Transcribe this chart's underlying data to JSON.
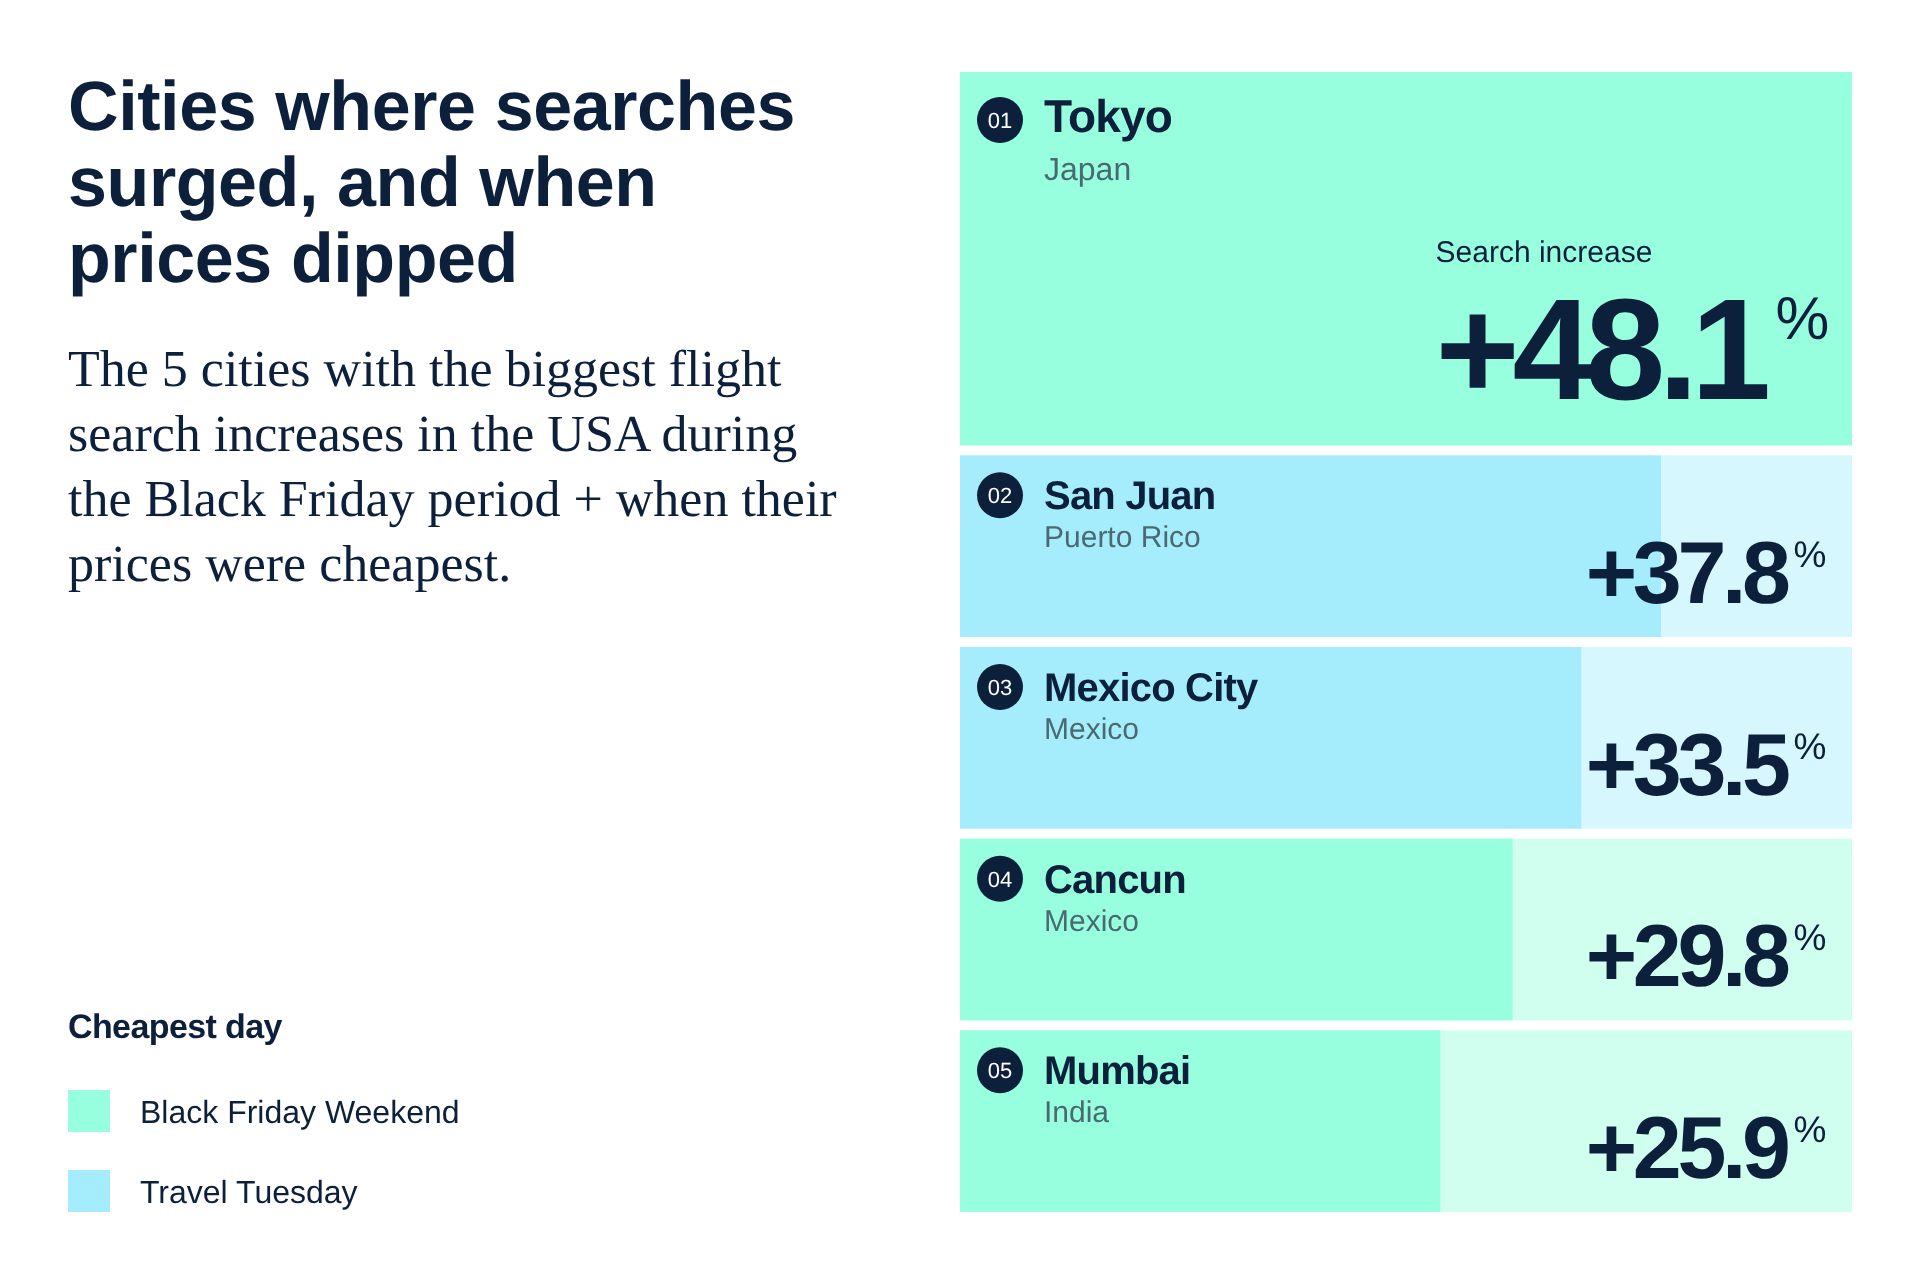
{
  "chart_data": {
    "type": "bar",
    "orientation": "horizontal",
    "stacked": true,
    "title": "Cities where searches surged, and when prices dipped",
    "subtitle": "The 5 cities with the biggest flight search increases in the USA during the Black Friday period + when their prices were cheapest.",
    "xlabel": "Search increase",
    "legend_title": "Cheapest day",
    "legend": "bottom left",
    "categories": [
      "Tokyo",
      "San Juan",
      "Mexico City",
      "Cancun",
      "Mumbai"
    ],
    "series": [
      {
        "name": "Black Friday Weekend",
        "color": "#97fede",
        "values": [
          48.1,
          null,
          null,
          29.8,
          25.9
        ],
        "value_labels": [
          "+48.1$^{%}$",
          null,
          null,
          "+29.8$^{%}$",
          "+25.9$^{%}$"
        ]
      },
      {
        "name": "Travel Tuesday",
        "color": "#a5edfc",
        "values": [
          null,
          37.8,
          33.5,
          null,
          null
        ],
        "value_labels": [
          null,
          "+37.8$^{%}$",
          "+33.5$^{%}$",
          null,
          null
        ]
      }
    ],
    "annotations": [
      "01",
      "Japan",
      "02",
      "Puerto Rico",
      "03",
      "Mexico",
      "04",
      "Mexico",
      "05",
      "India"
    ]
  }
}
